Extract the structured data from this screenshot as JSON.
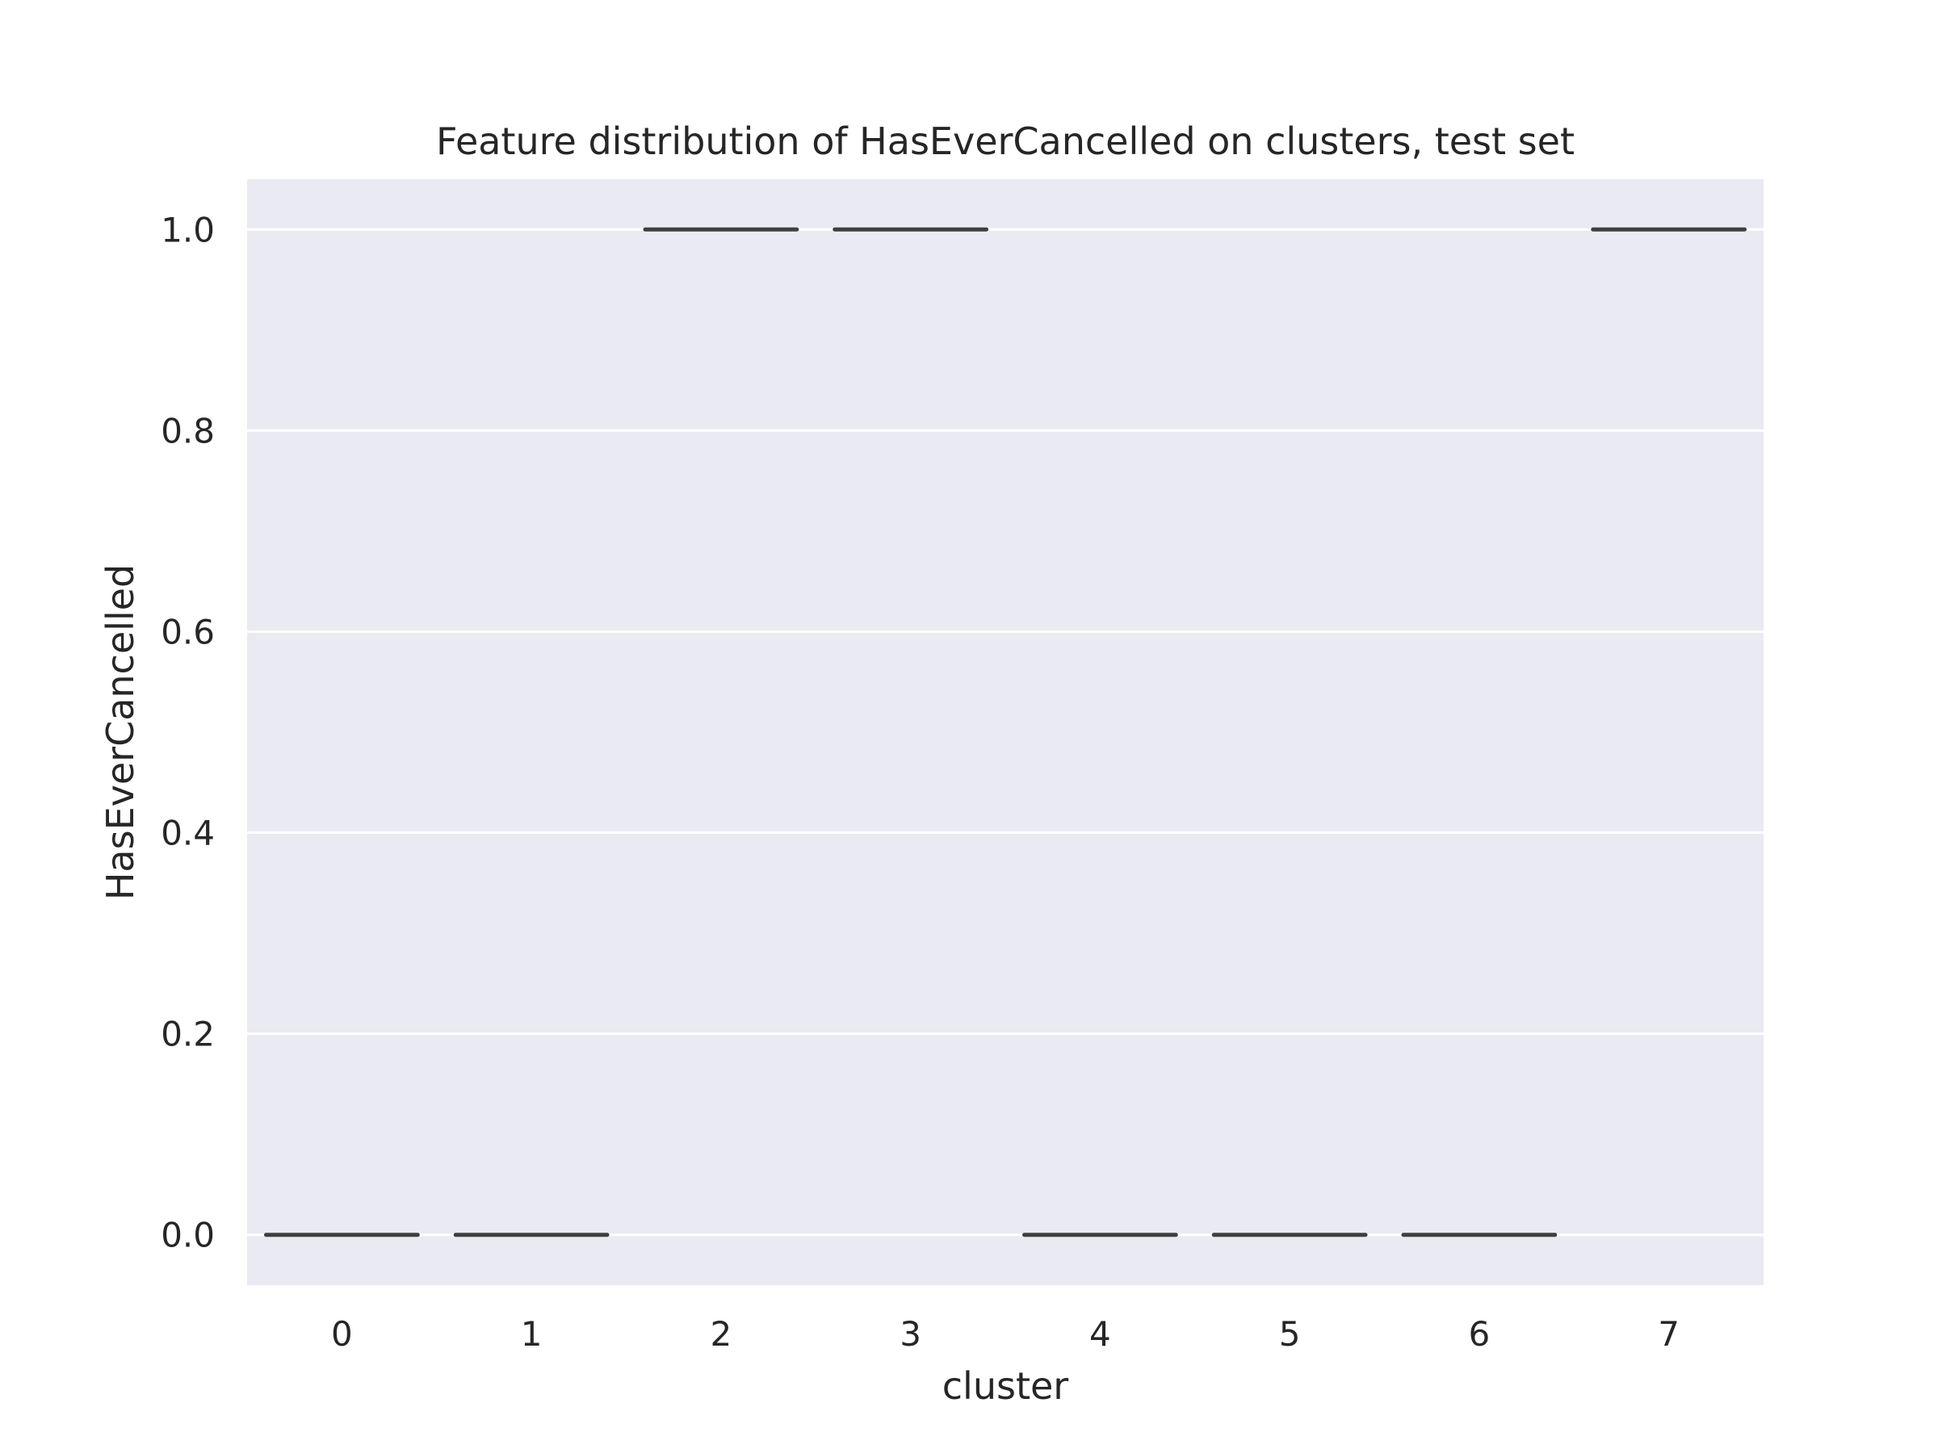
{
  "chart_data": {
    "type": "box",
    "title": "Feature distribution of HasEverCancelled on clusters, test set",
    "xlabel": "cluster",
    "ylabel": "HasEverCancelled",
    "categories": [
      "0",
      "1",
      "2",
      "3",
      "4",
      "5",
      "6",
      "7"
    ],
    "values": [
      0,
      0,
      1,
      1,
      0,
      0,
      0,
      1
    ],
    "ylim": [
      -0.05,
      1.05
    ],
    "yticks": [
      0.0,
      0.2,
      0.4,
      0.6,
      0.8,
      1.0
    ],
    "ytick_labels": [
      "0.0",
      "0.2",
      "0.4",
      "0.6",
      "0.8",
      "1.0"
    ],
    "grid": true,
    "colors": {
      "plot_background": "#eaeaf2",
      "grid": "#ffffff",
      "box_line": "#3f3f3f",
      "text": "#262626"
    }
  }
}
